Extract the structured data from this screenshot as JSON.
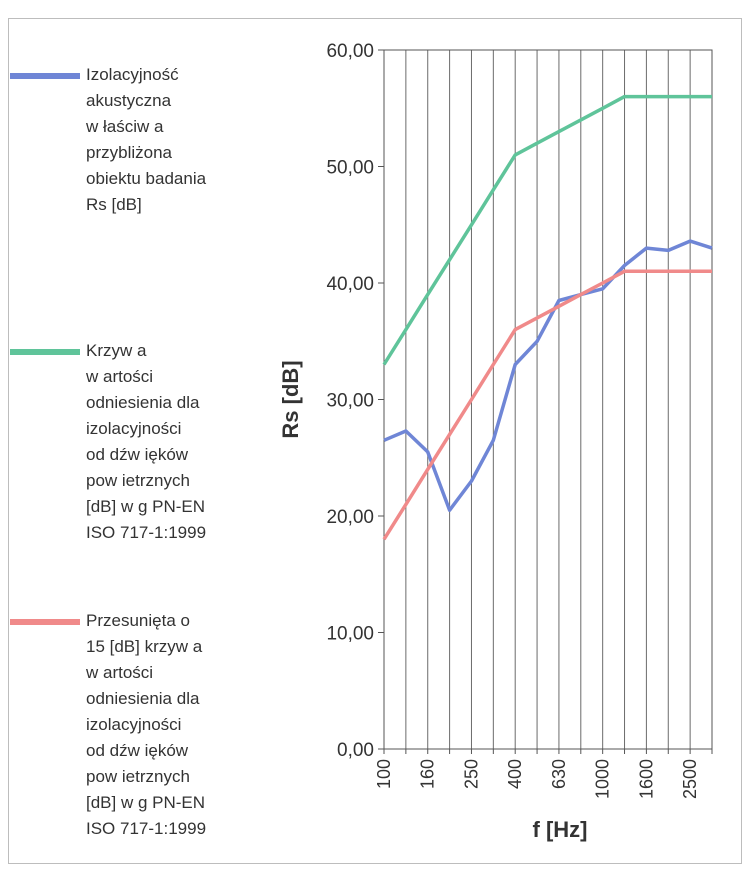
{
  "legend": {
    "items": [
      {
        "label": "Izolacyjność\nakustyczna\nw łaściw a\nprzybliżona\nobiektu badania\nRs [dB]",
        "color": "#6f86d6"
      },
      {
        "label": "Krzyw a\nw artości\nodniesienia dla\nizolacyjności\nod dźw ięków\npow ietrznych\n[dB] w g PN-EN\nISO 717-1:1999",
        "color": "#5fc49a"
      },
      {
        "label": "Przesunięta o\n15 [dB] krzyw a\nw artości\nodniesienia dla\nizolacyjności\nod dźw ięków\npow ietrznych\n[dB] w g PN-EN\nISO 717-1:1999",
        "color": "#f08a8a"
      }
    ]
  },
  "chart_data": {
    "type": "line",
    "xlabel": "f [Hz]",
    "ylabel": "Rs [dB]",
    "ylim": [
      0,
      60
    ],
    "yticks": [
      "0,00",
      "10,00",
      "20,00",
      "30,00",
      "40,00",
      "50,00",
      "60,00"
    ],
    "x": [
      "100",
      "125",
      "160",
      "200",
      "250",
      "315",
      "400",
      "500",
      "630",
      "800",
      "1000",
      "1250",
      "1600",
      "2000",
      "2500",
      "3150"
    ],
    "xtick_labels": [
      "100",
      "",
      "160",
      "",
      "250",
      "",
      "400",
      "",
      "630",
      "",
      "1000",
      "",
      "1600",
      "",
      "2500",
      ""
    ],
    "grid": "vertical",
    "series": [
      {
        "name": "Izolacyjność akustyczna właściwa przybliżona obiektu badania Rs [dB]",
        "color": "#6f86d6",
        "values": [
          26.5,
          27.3,
          25.5,
          20.5,
          23.0,
          26.5,
          33.0,
          35.0,
          38.5,
          39.0,
          39.5,
          41.5,
          43.0,
          42.8,
          43.6,
          43.0
        ]
      },
      {
        "name": "Krzywa wartości odniesienia dla izolacyjności od dźwięków powietrznych [dB] wg PN-EN ISO 717-1:1999",
        "color": "#5fc49a",
        "values": [
          33.0,
          36.0,
          39.0,
          42.0,
          45.0,
          48.0,
          51.0,
          52.0,
          53.0,
          54.0,
          55.0,
          56.0,
          56.0,
          56.0,
          56.0,
          56.0
        ]
      },
      {
        "name": "Przesunięta o 15 [dB] krzywa wartości odniesienia dla izolacyjności od dźwięków powietrznych [dB] wg PN-EN ISO 717-1:1999",
        "color": "#f08a8a",
        "values": [
          18.0,
          21.0,
          24.0,
          27.0,
          30.0,
          33.0,
          36.0,
          37.0,
          38.0,
          39.0,
          40.0,
          41.0,
          41.0,
          41.0,
          41.0,
          41.0
        ]
      }
    ]
  }
}
